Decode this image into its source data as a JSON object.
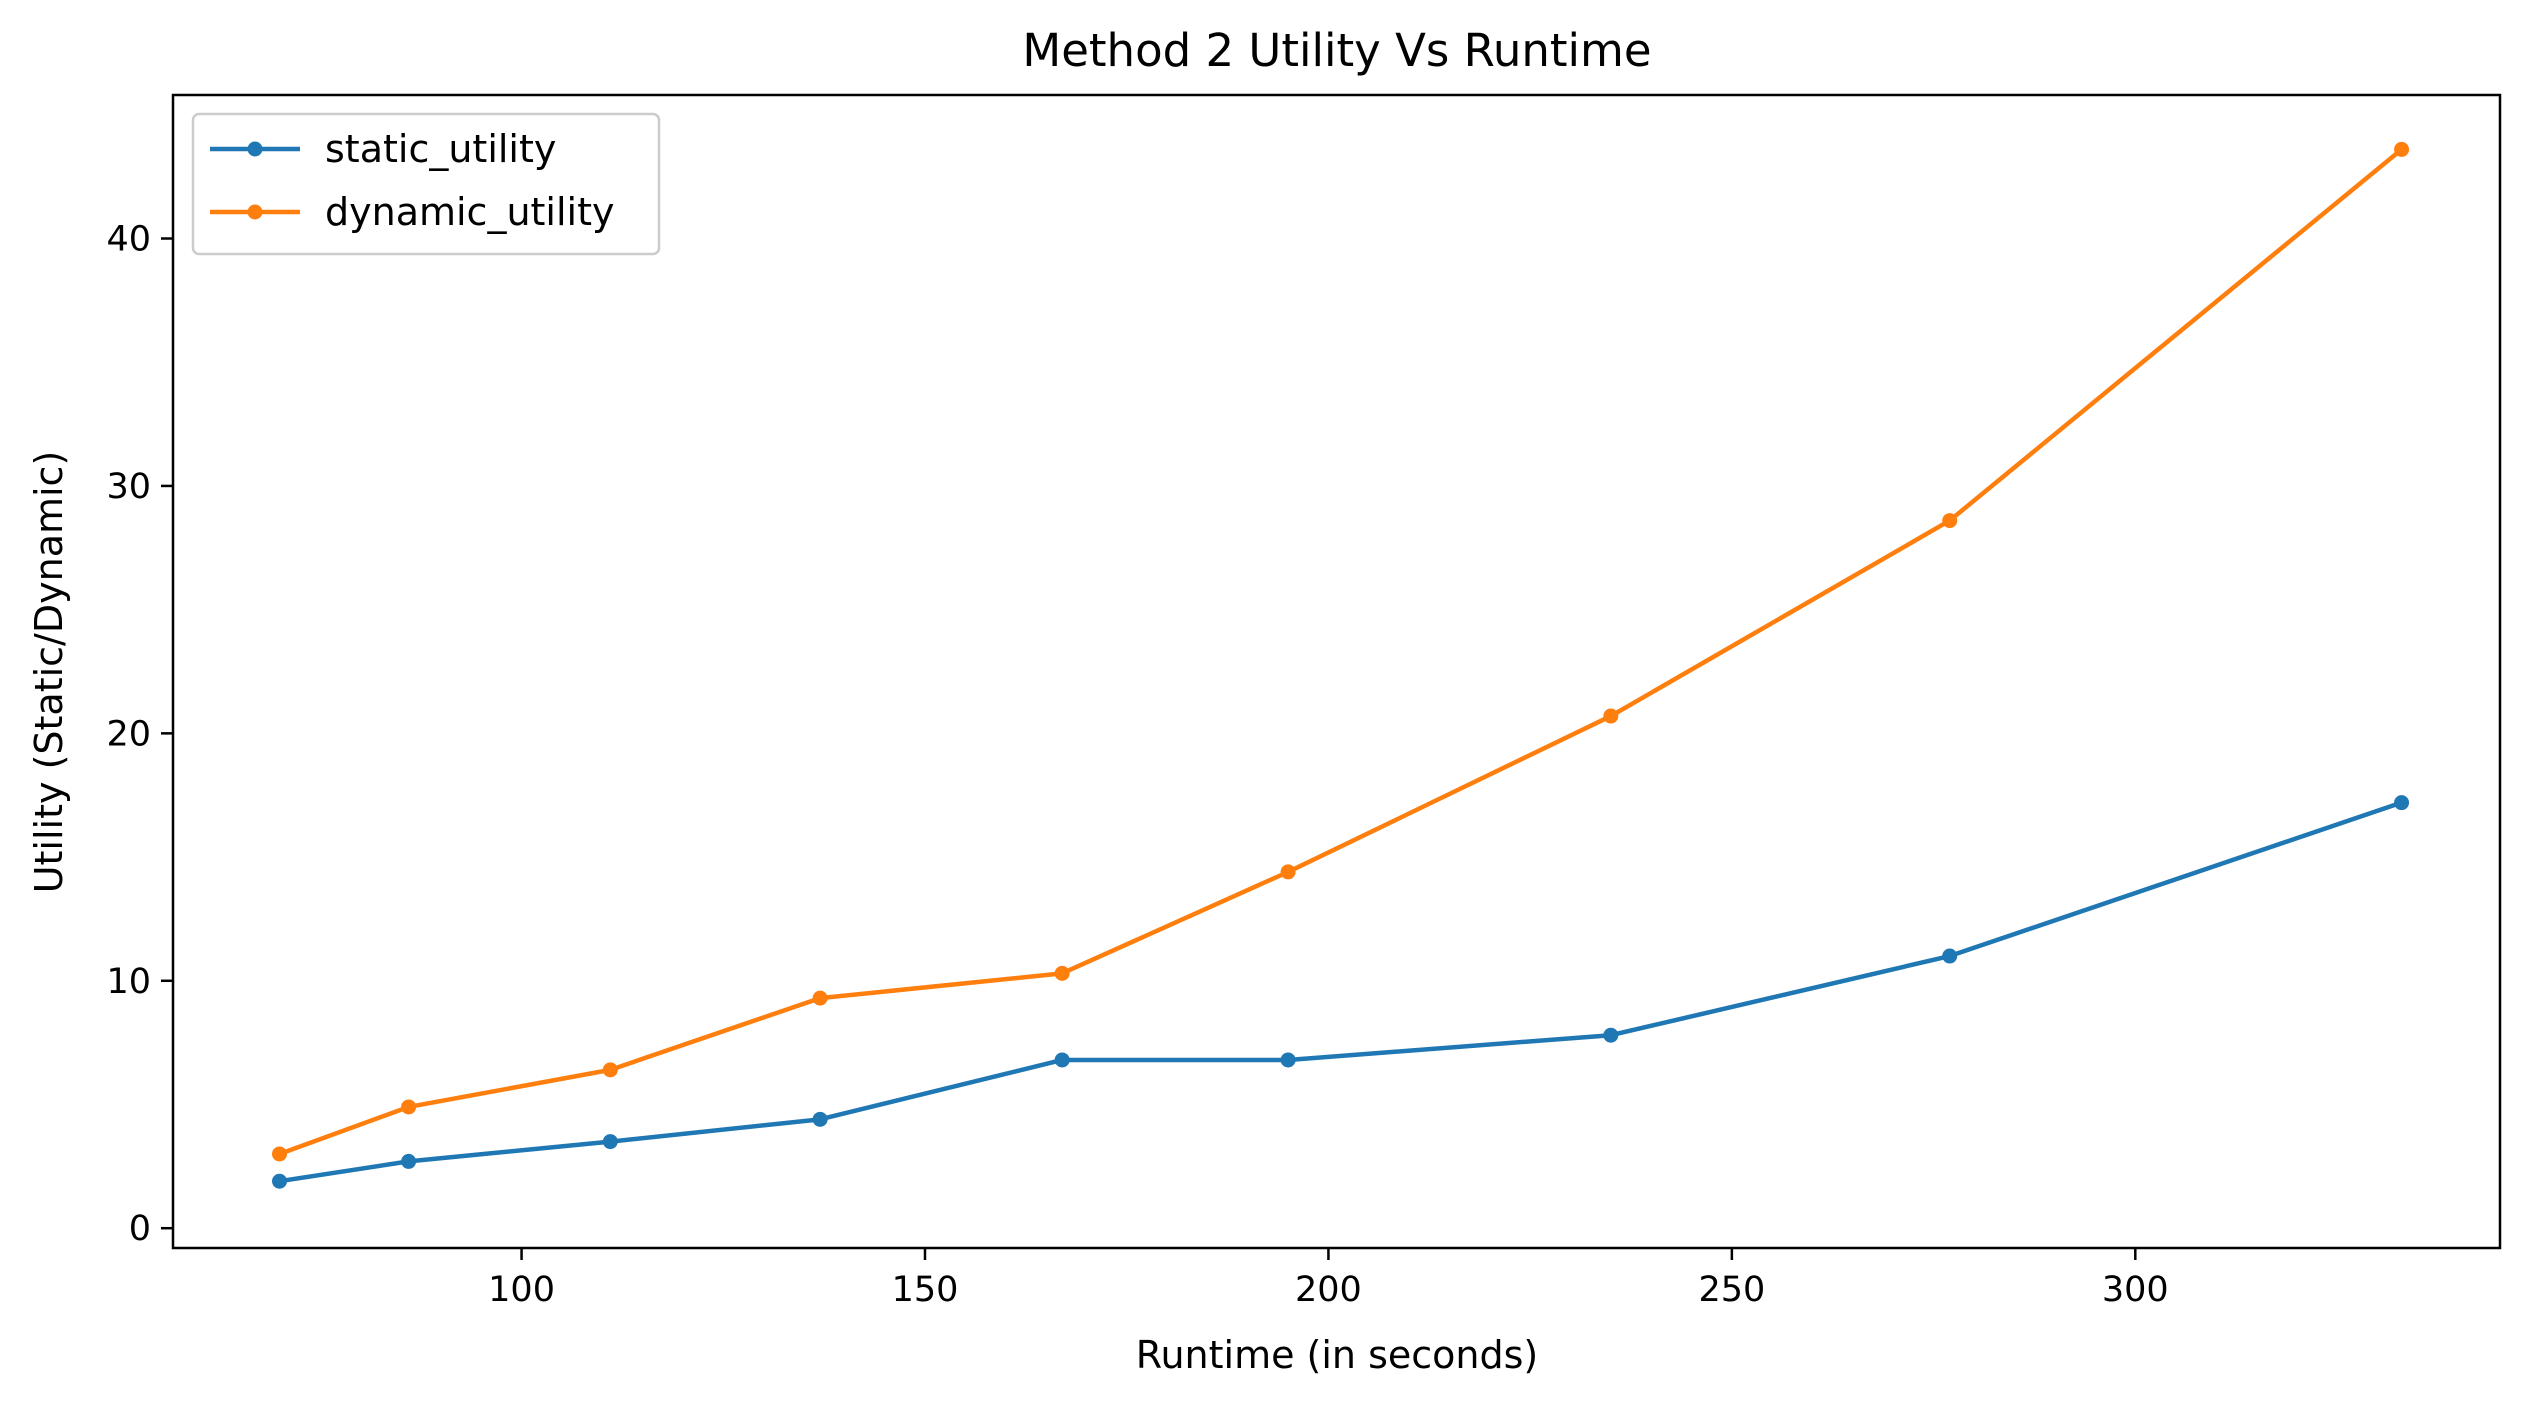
{
  "chart_data": {
    "type": "line",
    "title": "Method 2 Utility Vs Runtime",
    "xlabel": "Runtime (in seconds)",
    "ylabel": "Utility (Static/Dynamic)",
    "xlim": [
      56.8,
      345.2
    ],
    "ylim": [
      -0.8,
      45.8
    ],
    "xticks": [
      100,
      150,
      200,
      250,
      300
    ],
    "yticks": [
      0,
      10,
      20,
      30,
      40
    ],
    "grid": false,
    "legend_position": "top-left",
    "series": [
      {
        "name": "static_utility",
        "color": "#1f77b4",
        "x": [
          70,
          86,
          111,
          137,
          167,
          195,
          235,
          277,
          333
        ],
        "values": [
          1.9,
          2.7,
          3.5,
          4.4,
          6.8,
          6.8,
          7.8,
          11.0,
          17.2
        ]
      },
      {
        "name": "dynamic_utility",
        "color": "#ff7f0e",
        "x": [
          70,
          86,
          111,
          137,
          167,
          195,
          235,
          277,
          333
        ],
        "values": [
          3.0,
          4.9,
          6.4,
          9.3,
          10.3,
          14.4,
          20.7,
          28.6,
          43.6
        ]
      }
    ]
  }
}
